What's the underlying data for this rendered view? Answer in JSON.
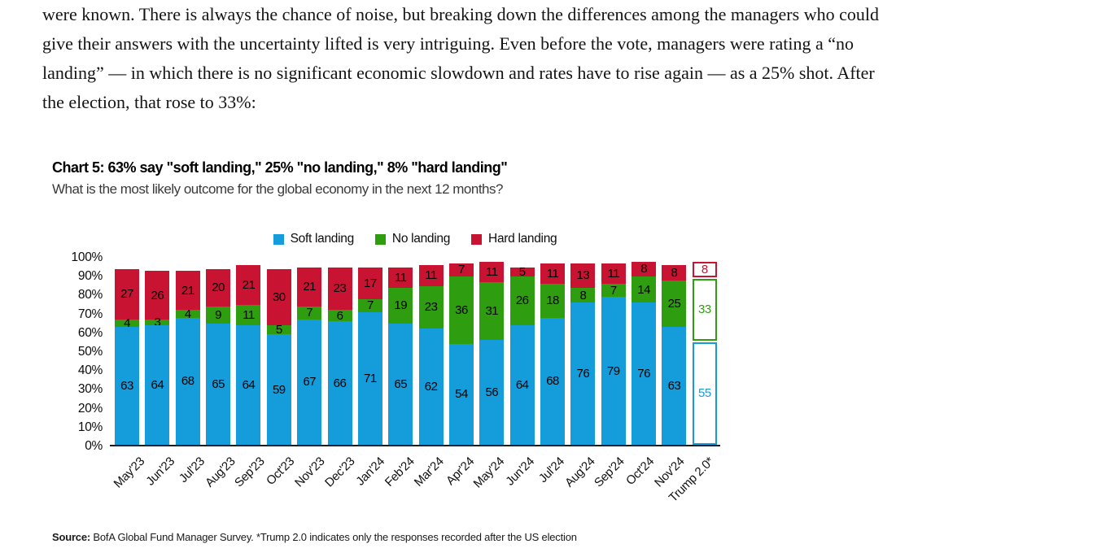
{
  "intro": {
    "lines": [
      "were known. There is always the chance of noise, but breaking down the differences among the managers who could",
      "give their answers with the uncertainty lifted is very intriguing. Even before the vote, managers were rating a “no",
      "landing” — in which there is no significant economic slowdown and rates have to rise again — as a 25% shot. After",
      "the election, that rose to 33%:"
    ]
  },
  "chart": {
    "source_label": "Source:",
    "source_text": " BofA Global Fund Manager Survey. *Trump 2.0 indicates only the responses recorded after the US election"
  },
  "chart_data": {
    "type": "bar",
    "stacked": true,
    "title": "Chart 5: 63% say \"soft landing,\" 25% \"no landing,\" 8% \"hard landing\"",
    "subtitle": "What is the most likely outcome for the global economy in the next 12 months?",
    "categories": [
      "May'23",
      "Jun'23",
      "Jul'23",
      "Aug'23",
      "Sep'23",
      "Oct'23",
      "Nov'23",
      "Dec'23",
      "Jan'24",
      "Feb'24",
      "Mar'24",
      "Apr'24",
      "May'24",
      "Jun'24",
      "Jul'24",
      "Aug'24",
      "Sep'24",
      "Oct'24",
      "Nov'24",
      "Trump 2.0*"
    ],
    "series": [
      {
        "name": "Soft landing",
        "color": "#149CDB",
        "values": [
          63,
          64,
          68,
          65,
          64,
          59,
          67,
          66,
          71,
          65,
          62,
          54,
          56,
          64,
          68,
          76,
          79,
          76,
          63,
          55
        ]
      },
      {
        "name": "No landing",
        "color": "#2E9E10",
        "values": [
          4,
          3,
          4,
          9,
          11,
          5,
          7,
          6,
          7,
          19,
          23,
          36,
          31,
          26,
          18,
          8,
          7,
          14,
          25,
          33
        ]
      },
      {
        "name": "Hard landing",
        "color": "#C81432",
        "values": [
          27,
          26,
          21,
          20,
          21,
          30,
          21,
          23,
          17,
          11,
          11,
          7,
          11,
          5,
          11,
          13,
          11,
          8,
          8,
          8
        ]
      }
    ],
    "outline_last_bar": true,
    "outlined_category": "Trump 2.0*",
    "ylim": [
      0,
      100
    ],
    "y_ticks": [
      "100%",
      "90%",
      "80%",
      "70%",
      "60%",
      "50%",
      "40%",
      "30%",
      "20%",
      "10%",
      "0%"
    ],
    "grid": false,
    "legend_position": "top"
  }
}
